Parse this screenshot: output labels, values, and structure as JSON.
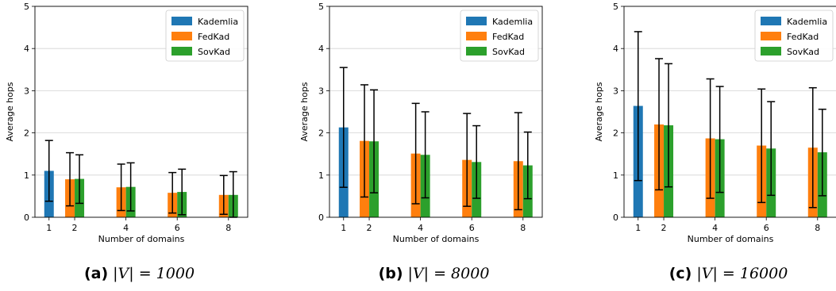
{
  "chart_data": [
    {
      "type": "bar",
      "caption_letter": "(a)",
      "caption_math": "|V| = 1000",
      "xlabel": "Number of domains",
      "ylabel": "Average hops",
      "ylim": [
        0,
        5
      ],
      "yticks": [
        "0",
        "1",
        "2",
        "3",
        "4",
        "5"
      ],
      "x": [
        1,
        2,
        4,
        6,
        8
      ],
      "xticklabels": [
        "1",
        "2",
        "4",
        "6",
        "8"
      ],
      "grid": "horizontal",
      "legend": "top-right",
      "series": [
        {
          "name": "Kademlia",
          "color": "#1f77b4",
          "values": [
            1.1,
            null,
            null,
            null,
            null
          ],
          "err_low": [
            0.38,
            null,
            null,
            null,
            null
          ],
          "err_high": [
            1.82,
            null,
            null,
            null,
            null
          ]
        },
        {
          "name": "FedKad",
          "color": "#ff7f0e",
          "values": [
            null,
            0.9,
            0.71,
            0.58,
            0.53
          ],
          "err_low": [
            null,
            0.27,
            0.16,
            0.1,
            0.07
          ],
          "err_high": [
            null,
            1.53,
            1.26,
            1.06,
            0.99
          ]
        },
        {
          "name": "SovKad",
          "color": "#2ca02c",
          "values": [
            null,
            0.91,
            0.72,
            0.6,
            0.53
          ],
          "err_low": [
            null,
            0.33,
            0.15,
            0.06,
            0.0
          ],
          "err_high": [
            null,
            1.48,
            1.29,
            1.14,
            1.08
          ]
        }
      ]
    },
    {
      "type": "bar",
      "caption_letter": "(b)",
      "caption_math": "|V| = 8000",
      "xlabel": "Number of domains",
      "ylabel": "Average hops",
      "ylim": [
        0,
        5
      ],
      "yticks": [
        "0",
        "1",
        "2",
        "3",
        "4",
        "5"
      ],
      "x": [
        1,
        2,
        4,
        6,
        8
      ],
      "xticklabels": [
        "1",
        "2",
        "4",
        "6",
        "8"
      ],
      "grid": "horizontal",
      "legend": "top-right",
      "series": [
        {
          "name": "Kademlia",
          "color": "#1f77b4",
          "values": [
            2.13,
            null,
            null,
            null,
            null
          ],
          "err_low": [
            0.71,
            null,
            null,
            null,
            null
          ],
          "err_high": [
            3.55,
            null,
            null,
            null,
            null
          ]
        },
        {
          "name": "FedKad",
          "color": "#ff7f0e",
          "values": [
            null,
            1.81,
            1.51,
            1.36,
            1.33
          ],
          "err_low": [
            null,
            0.48,
            0.32,
            0.26,
            0.18
          ],
          "err_high": [
            null,
            3.14,
            2.7,
            2.46,
            2.48
          ]
        },
        {
          "name": "SovKad",
          "color": "#2ca02c",
          "values": [
            null,
            1.8,
            1.48,
            1.31,
            1.23
          ],
          "err_low": [
            null,
            0.58,
            0.46,
            0.45,
            0.44
          ],
          "err_high": [
            null,
            3.02,
            2.5,
            2.17,
            2.02
          ]
        }
      ]
    },
    {
      "type": "bar",
      "caption_letter": "(c)",
      "caption_math": "|V| = 16000",
      "xlabel": "Number of domains",
      "ylabel": "Average hops",
      "ylim": [
        0,
        5
      ],
      "yticks": [
        "0",
        "1",
        "2",
        "3",
        "4",
        "5"
      ],
      "x": [
        1,
        2,
        4,
        6,
        8
      ],
      "xticklabels": [
        "1",
        "2",
        "4",
        "6",
        "8"
      ],
      "grid": "horizontal",
      "legend": "top-right",
      "series": [
        {
          "name": "Kademlia",
          "color": "#1f77b4",
          "values": [
            2.64,
            null,
            null,
            null,
            null
          ],
          "err_low": [
            0.87,
            null,
            null,
            null,
            null
          ],
          "err_high": [
            4.4,
            null,
            null,
            null,
            null
          ]
        },
        {
          "name": "FedKad",
          "color": "#ff7f0e",
          "values": [
            null,
            2.2,
            1.87,
            1.7,
            1.65
          ],
          "err_low": [
            null,
            0.65,
            0.45,
            0.35,
            0.23
          ],
          "err_high": [
            null,
            3.76,
            3.28,
            3.04,
            3.07
          ]
        },
        {
          "name": "SovKad",
          "color": "#2ca02c",
          "values": [
            null,
            2.18,
            1.85,
            1.63,
            1.54
          ],
          "err_low": [
            null,
            0.72,
            0.59,
            0.52,
            0.51
          ],
          "err_high": [
            null,
            3.64,
            3.1,
            2.74,
            2.56
          ]
        }
      ]
    }
  ]
}
